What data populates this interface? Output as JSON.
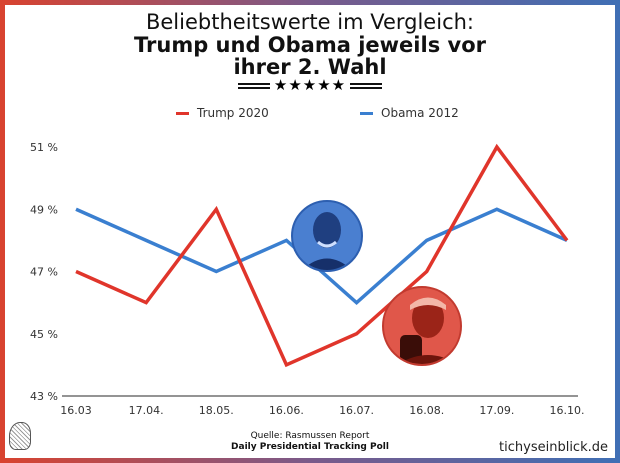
{
  "header": {
    "title_line1": "Beliebtheitswerte im Vergleich:",
    "title_line2": "Trump und Obama jeweils vor",
    "title_line3": "ihrer 2. Wahl",
    "stars": "★★★★★"
  },
  "footer": {
    "source_line1": "Quelle: Rasmussen Report",
    "source_line2": "Daily Presidential Tracking Poll",
    "brand": "tichyseinblick.de"
  },
  "chart_data": {
    "type": "line",
    "title": "Beliebtheitswerte im Vergleich: Trump und Obama jeweils vor ihrer 2. Wahl",
    "categories": [
      "16.03",
      "17.04.",
      "18.05.",
      "16.06.",
      "16.07.",
      "16.08.",
      "17.09.",
      "16.10."
    ],
    "ylim": [
      43,
      51
    ],
    "yticks": [
      43,
      45,
      47,
      49,
      51
    ],
    "ytick_labels": [
      "43 %",
      "45 %",
      "47 %",
      "49 %",
      "51 %"
    ],
    "legend_position": "top",
    "grid": false,
    "series": [
      {
        "name": "Trump 2020",
        "color": "#e0352b",
        "values": [
          47,
          46,
          49,
          44,
          45,
          47,
          51,
          48
        ]
      },
      {
        "name": "Obama 2012",
        "color": "#3a7fd0",
        "values": [
          49,
          48,
          47,
          48,
          46,
          48,
          49,
          48
        ]
      }
    ]
  }
}
